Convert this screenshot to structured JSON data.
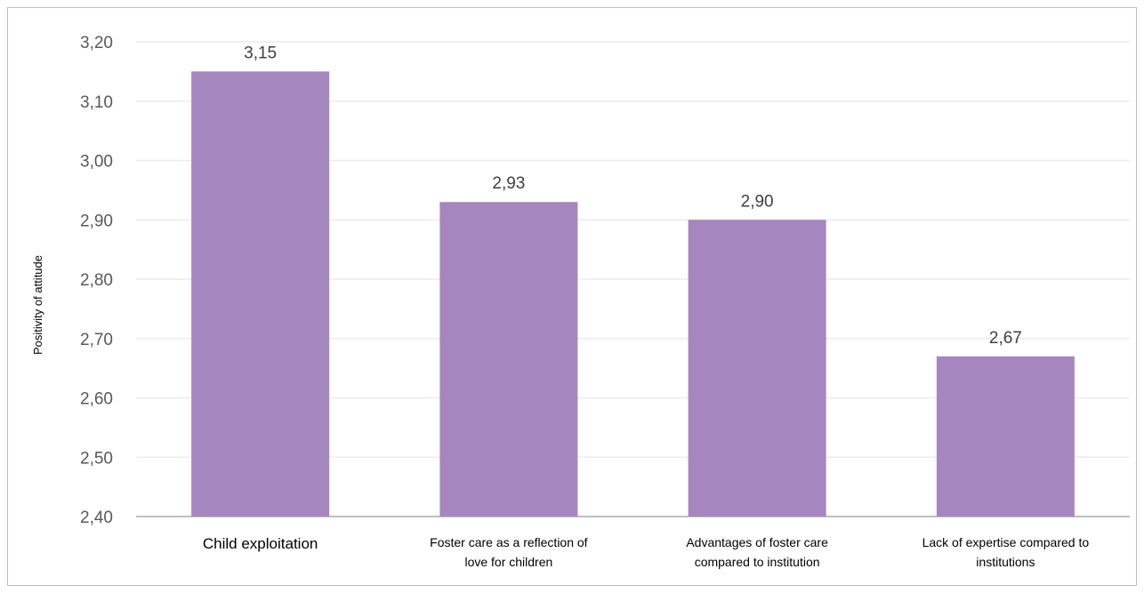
{
  "chart_data": {
    "type": "bar",
    "categories": [
      [
        "Child exploitation"
      ],
      [
        "Foster care as a reflection of",
        "love for children"
      ],
      [
        "Advantages of foster care",
        "compared to institution"
      ],
      [
        "Lack of expertise compared to",
        "institutions"
      ]
    ],
    "values": [
      3.15,
      2.93,
      2.9,
      2.67
    ],
    "data_labels": [
      "3,15",
      "2,93",
      "2,90",
      "2,67"
    ],
    "ylabel": "Positivity of attitude",
    "ylim": [
      2.4,
      3.2
    ],
    "yticks": [
      2.4,
      2.5,
      2.6,
      2.7,
      2.8,
      2.9,
      3.0,
      3.1,
      3.2
    ],
    "ytick_labels": [
      "2,40",
      "2,50",
      "2,60",
      "2,70",
      "2,80",
      "2,90",
      "3,00",
      "3,10",
      "3,20"
    ],
    "grid": true,
    "bar_color": "#a686bf",
    "grid_color": "#ececec",
    "axis_color": "#bfbfbf"
  }
}
